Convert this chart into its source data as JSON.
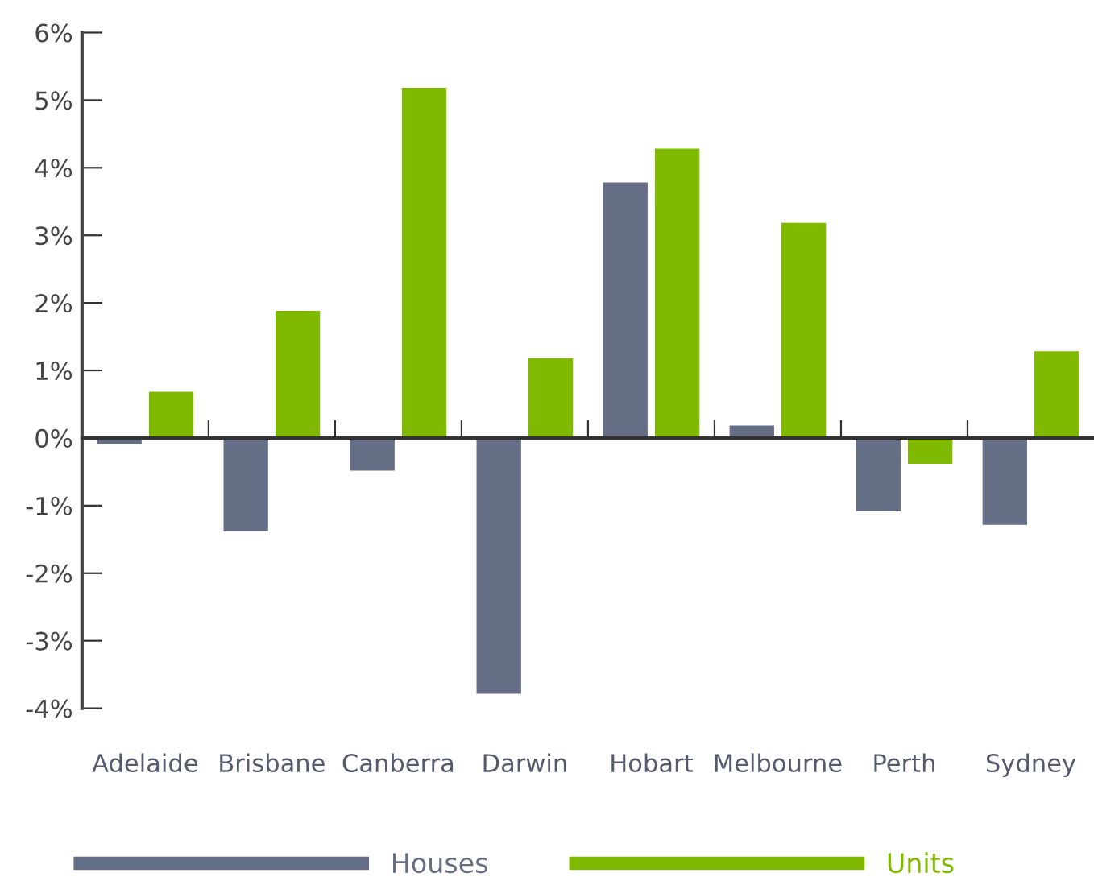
{
  "chart_data": {
    "type": "bar",
    "categories": [
      "Adelaide",
      "Brisbane",
      "Canberra",
      "Darwin",
      "Hobart",
      "Melbourne",
      "Perth",
      "Sydney"
    ],
    "series": [
      {
        "name": "Houses",
        "color": "#656e84",
        "values": [
          -0.1,
          -1.4,
          -0.5,
          -3.8,
          3.8,
          0.2,
          -1.1,
          -1.3
        ]
      },
      {
        "name": "Units",
        "color": "#80ba00",
        "values": [
          0.7,
          1.9,
          5.2,
          1.2,
          4.3,
          3.2,
          -0.4,
          1.3
        ]
      }
    ],
    "ylim": [
      -4,
      6
    ],
    "yticks": [
      {
        "value": -4,
        "label": "-4%"
      },
      {
        "value": -3,
        "label": "-3%"
      },
      {
        "value": -2,
        "label": "-2%"
      },
      {
        "value": -1,
        "label": "-1%"
      },
      {
        "value": 0,
        "label": "0%"
      },
      {
        "value": 1,
        "label": "1%"
      },
      {
        "value": 2,
        "label": "2%"
      },
      {
        "value": 3,
        "label": "3%"
      },
      {
        "value": 4,
        "label": "4%"
      },
      {
        "value": 5,
        "label": "5%"
      },
      {
        "value": 6,
        "label": "6%"
      }
    ],
    "legend": "bottom"
  }
}
